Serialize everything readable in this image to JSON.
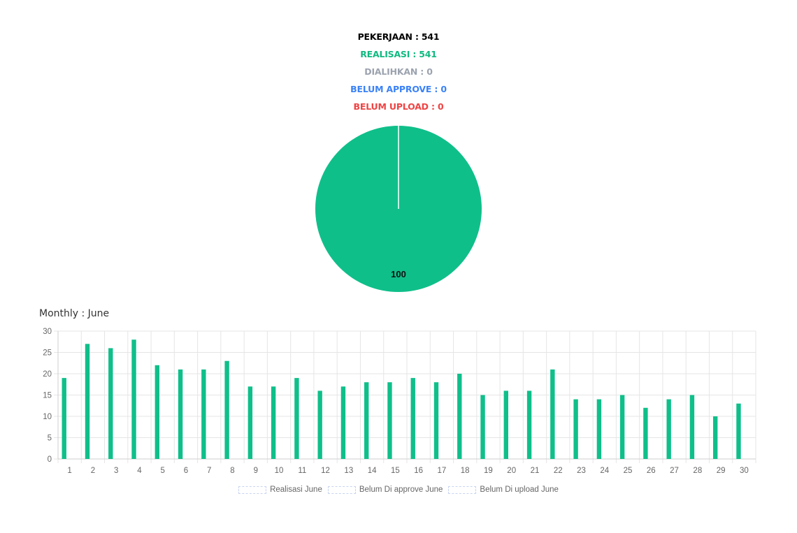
{
  "summary": {
    "pekerjaan": {
      "text": "PEKERJAAN : 541",
      "color": "#000000"
    },
    "realisasi": {
      "text": "REALISASI : 541",
      "color": "#10b981"
    },
    "dialihkan": {
      "text": "DIALIHKAN : 0",
      "color": "#9ca3af"
    },
    "belum_approve": {
      "text": "BELUM APPROVE : 0",
      "color": "#3b82f6"
    },
    "belum_upload": {
      "text": "BELUM UPLOAD : 0",
      "color": "#ef4444"
    }
  },
  "monthly": {
    "title": "Monthly : June"
  },
  "legend": {
    "items": [
      {
        "label": "Realisasi June"
      },
      {
        "label": "Belum Di approve June"
      },
      {
        "label": "Belum Di upload June"
      }
    ]
  },
  "chart_data": [
    {
      "type": "pie",
      "slices": [
        {
          "value": 100,
          "color": "#0fbf8a",
          "label": "100"
        }
      ]
    },
    {
      "type": "bar",
      "title": "Monthly : June",
      "categories": [
        "1",
        "2",
        "3",
        "4",
        "5",
        "6",
        "7",
        "8",
        "9",
        "10",
        "11",
        "12",
        "13",
        "14",
        "15",
        "16",
        "17",
        "18",
        "19",
        "20",
        "21",
        "22",
        "23",
        "24",
        "25",
        "26",
        "27",
        "28",
        "29",
        "30"
      ],
      "series": [
        {
          "name": "Realisasi June",
          "color": "#0fbf8a",
          "values": [
            19,
            27,
            26,
            28,
            22,
            21,
            21,
            23,
            17,
            17,
            19,
            16,
            17,
            18,
            18,
            19,
            18,
            20,
            15,
            16,
            16,
            21,
            14,
            14,
            15,
            12,
            14,
            15,
            10,
            13
          ]
        },
        {
          "name": "Belum Di approve June",
          "color": "#3b82f6",
          "values": [
            0,
            0,
            0,
            0,
            0,
            0,
            0,
            0,
            0,
            0,
            0,
            0,
            0,
            0,
            0,
            0,
            0,
            0,
            0,
            0,
            0,
            0,
            0,
            0,
            0,
            0,
            0,
            0,
            0,
            0
          ]
        },
        {
          "name": "Belum Di upload June",
          "color": "#ef4444",
          "values": [
            0,
            0,
            0,
            0,
            0,
            0,
            0,
            0,
            0,
            0,
            0,
            0,
            0,
            0,
            0,
            0,
            0,
            0,
            0,
            0,
            0,
            0,
            0,
            0,
            0,
            0,
            0,
            0,
            0,
            0
          ]
        }
      ],
      "ylim": [
        0,
        30
      ],
      "yticks": [
        0,
        5,
        10,
        15,
        20,
        25,
        30
      ],
      "grid": true,
      "legend_position": "bottom"
    }
  ]
}
